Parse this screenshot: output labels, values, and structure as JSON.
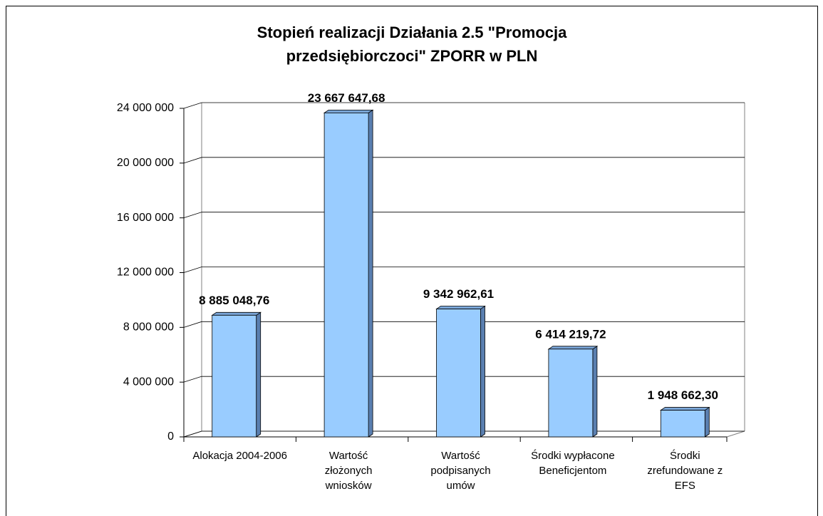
{
  "chart_data": {
    "type": "bar3d",
    "title": "Stopień realizacji Działania 2.5 \"Promocja przedsiębiorczoci\" ZPORR w PLN",
    "categories": [
      "Alokacja 2004-2006",
      "Wartość złożonych wniosków",
      "Wartość podpisanych umów",
      "Środki wypłacone Beneficjentom",
      "Środki zrefundowane z EFS"
    ],
    "values": [
      8885048.76,
      23667647.68,
      9342962.61,
      6414219.72,
      1948662.3
    ],
    "value_labels": [
      "8 885 048,76",
      "23 667 647,68",
      "9 342 962,61",
      "6 414 219,72",
      "1 948 662,30"
    ],
    "color": "#99ccff",
    "ylim": [
      0,
      24000000
    ],
    "yticks": [
      0,
      {
        "value": 4000000,
        "label": "4 000 000"
      },
      {
        "value": 8000000,
        "label": "8 000 000"
      },
      {
        "value": 12000000,
        "label": "12 000 000"
      },
      {
        "value": 16000000,
        "label": "16 000 000"
      },
      {
        "value": 20000000,
        "label": "20 000 000"
      },
      {
        "value": 24000000,
        "label": "24 000 000"
      }
    ],
    "grid": true
  }
}
